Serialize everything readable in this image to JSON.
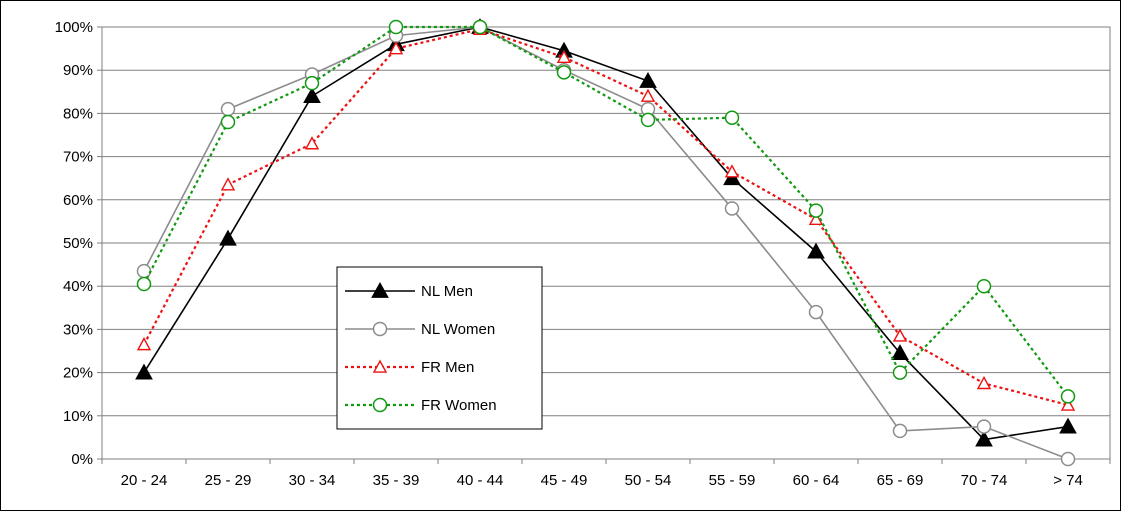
{
  "chart_data": {
    "type": "line",
    "title": "",
    "xlabel": "",
    "ylabel": "",
    "categories": [
      "20 - 24",
      "25 - 29",
      "30 - 34",
      "35 - 39",
      "40 - 44",
      "45 - 49",
      "50 - 54",
      "55 - 59",
      "60 - 64",
      "65 - 69",
      "70 - 74",
      "> 74"
    ],
    "ylim": [
      0,
      100
    ],
    "y_ticks": [
      0,
      10,
      20,
      30,
      40,
      50,
      60,
      70,
      80,
      90,
      100
    ],
    "y_tick_labels": [
      "0%",
      "10%",
      "20%",
      "30%",
      "40%",
      "50%",
      "60%",
      "70%",
      "80%",
      "90%",
      "100%"
    ],
    "grid": "horizontal",
    "legend_position": "inside, lower-left of center",
    "series": [
      {
        "name": "NL Men",
        "values": [
          20,
          51,
          84,
          96,
          100,
          94.5,
          87.5,
          65,
          48,
          24.5,
          4.5,
          7.5
        ],
        "color": "#000000",
        "line": "solid",
        "marker": "filled-triangle"
      },
      {
        "name": "NL Women",
        "values": [
          43.5,
          81,
          89,
          98,
          100,
          90,
          81,
          58,
          34,
          6.5,
          7.5,
          0
        ],
        "color": "#8c8c8c",
        "line": "solid",
        "marker": "open-circle"
      },
      {
        "name": "FR Men",
        "values": [
          26.5,
          63.5,
          73,
          95,
          99.5,
          93,
          84,
          66.5,
          55.5,
          28.5,
          17.5,
          12.5
        ],
        "color": "#ee1111",
        "line": "dotted",
        "marker": "open-triangle"
      },
      {
        "name": "FR Women",
        "values": [
          40.5,
          78,
          87,
          100,
          100,
          89.5,
          78.5,
          79,
          57.5,
          20,
          40,
          14.5
        ],
        "color": "#119911",
        "line": "dotted",
        "marker": "open-circle"
      }
    ]
  }
}
